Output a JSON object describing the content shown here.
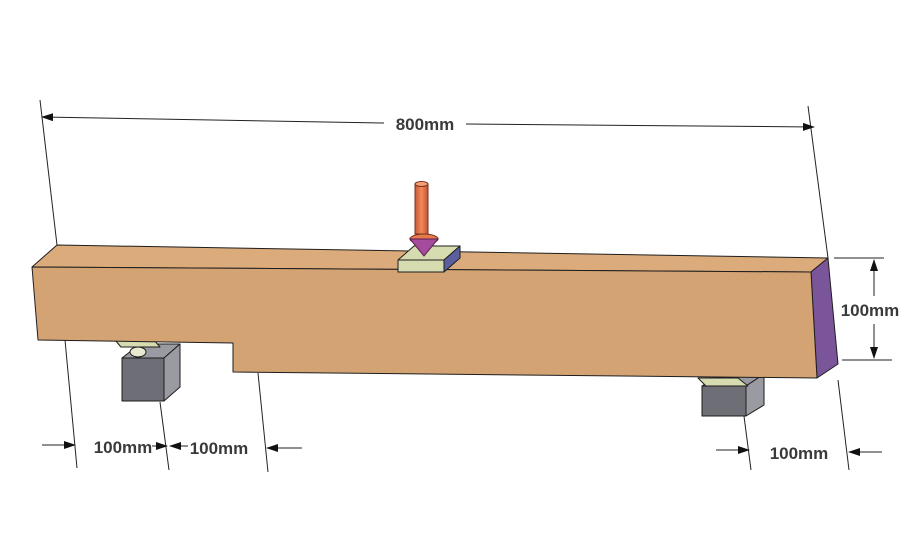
{
  "labels": {
    "overall_length": "800mm",
    "beam_height": "100mm",
    "support_offset_left": "100mm",
    "notch_length": "100mm",
    "support_offset_right": "100mm"
  },
  "colors": {
    "beam_front": "#d4a373",
    "beam_top": "#dbab7c",
    "beam_end": "#7b5599",
    "support_block": "#6e6e76",
    "support_block_top": "#9a9aa3",
    "support_pad": "#d7dbb0",
    "load_plate": "#d7dbb0",
    "load_plate_side": "#5b5f9e",
    "load_arrow": "#e57a4a",
    "load_arrow_head": "#a54d9c"
  }
}
